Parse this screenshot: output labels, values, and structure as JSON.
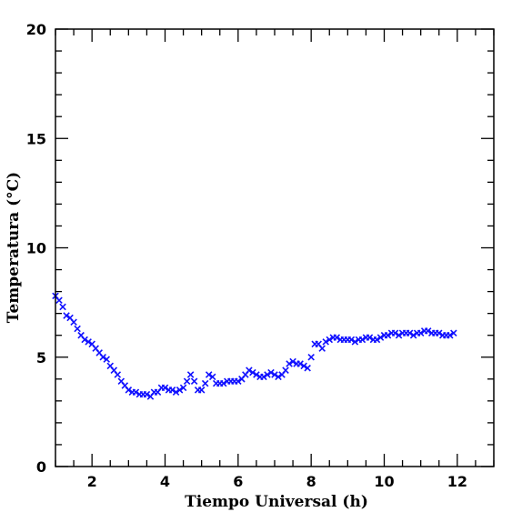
{
  "chart_data": {
    "type": "scatter",
    "title": "",
    "xlabel": "Tiempo Universal (h)",
    "ylabel": "Temperatura (°C)",
    "xlim": [
      1.0,
      13.0
    ],
    "ylim": [
      0,
      20
    ],
    "xticks": [
      2,
      4,
      6,
      8,
      10,
      12
    ],
    "yticks": [
      0,
      5,
      10,
      15,
      20
    ],
    "xtick_labels": [
      "2",
      "4",
      "6",
      "8",
      "10",
      "12"
    ],
    "ytick_labels": [
      "0",
      "5",
      "10",
      "15",
      "20"
    ],
    "x_minor_step": 0.5,
    "y_minor_step": 1,
    "grid": false,
    "marker": "x",
    "color": "#1010ff",
    "series": [
      {
        "x": [
          1.0,
          1.1,
          1.2,
          1.3,
          1.4,
          1.5,
          1.6,
          1.7,
          1.8,
          1.9,
          2.0,
          2.1,
          2.2,
          2.3,
          2.4,
          2.5,
          2.6,
          2.7,
          2.8,
          2.9,
          3.0,
          3.1,
          3.2,
          3.3,
          3.4,
          3.5,
          3.6,
          3.7,
          3.8,
          3.9,
          4.0,
          4.1,
          4.2,
          4.3,
          4.4,
          4.5,
          4.6,
          4.7,
          4.8,
          4.9,
          5.0,
          5.1,
          5.2,
          5.3,
          5.4,
          5.5,
          5.6,
          5.7,
          5.8,
          5.9,
          6.0,
          6.1,
          6.2,
          6.3,
          6.4,
          6.5,
          6.6,
          6.7,
          6.8,
          6.9,
          7.0,
          7.1,
          7.2,
          7.3,
          7.4,
          7.5,
          7.6,
          7.7,
          7.8,
          7.9,
          8.0,
          8.1,
          8.2,
          8.3,
          8.4,
          8.5,
          8.6,
          8.7,
          8.8,
          8.9,
          9.0,
          9.1,
          9.2,
          9.3,
          9.4,
          9.5,
          9.6,
          9.7,
          9.8,
          9.9,
          10.0,
          10.1,
          10.2,
          10.3,
          10.4,
          10.5,
          10.6,
          10.7,
          10.8,
          10.9,
          11.0,
          11.1,
          11.2,
          11.3,
          11.4,
          11.5,
          11.6,
          11.7,
          11.8,
          11.9
        ],
        "y": [
          7.8,
          7.6,
          7.3,
          6.9,
          6.8,
          6.6,
          6.3,
          6.0,
          5.8,
          5.7,
          5.6,
          5.4,
          5.2,
          5.0,
          4.9,
          4.6,
          4.4,
          4.2,
          3.9,
          3.7,
          3.5,
          3.4,
          3.4,
          3.3,
          3.3,
          3.3,
          3.2,
          3.4,
          3.4,
          3.6,
          3.6,
          3.5,
          3.5,
          3.4,
          3.5,
          3.6,
          3.9,
          4.2,
          3.9,
          3.5,
          3.5,
          3.8,
          4.2,
          4.1,
          3.8,
          3.8,
          3.8,
          3.9,
          3.9,
          3.9,
          3.9,
          4.0,
          4.2,
          4.4,
          4.3,
          4.2,
          4.1,
          4.1,
          4.2,
          4.3,
          4.2,
          4.1,
          4.2,
          4.4,
          4.7,
          4.8,
          4.7,
          4.7,
          4.6,
          4.5,
          5.0,
          5.6,
          5.6,
          5.4,
          5.7,
          5.8,
          5.9,
          5.9,
          5.8,
          5.8,
          5.8,
          5.8,
          5.7,
          5.8,
          5.8,
          5.9,
          5.9,
          5.8,
          5.8,
          5.9,
          6.0,
          6.0,
          6.1,
          6.1,
          6.0,
          6.1,
          6.1,
          6.1,
          6.0,
          6.1,
          6.1,
          6.2,
          6.2,
          6.1,
          6.1,
          6.1,
          6.0,
          6.0,
          6.0,
          6.1
        ]
      }
    ]
  }
}
